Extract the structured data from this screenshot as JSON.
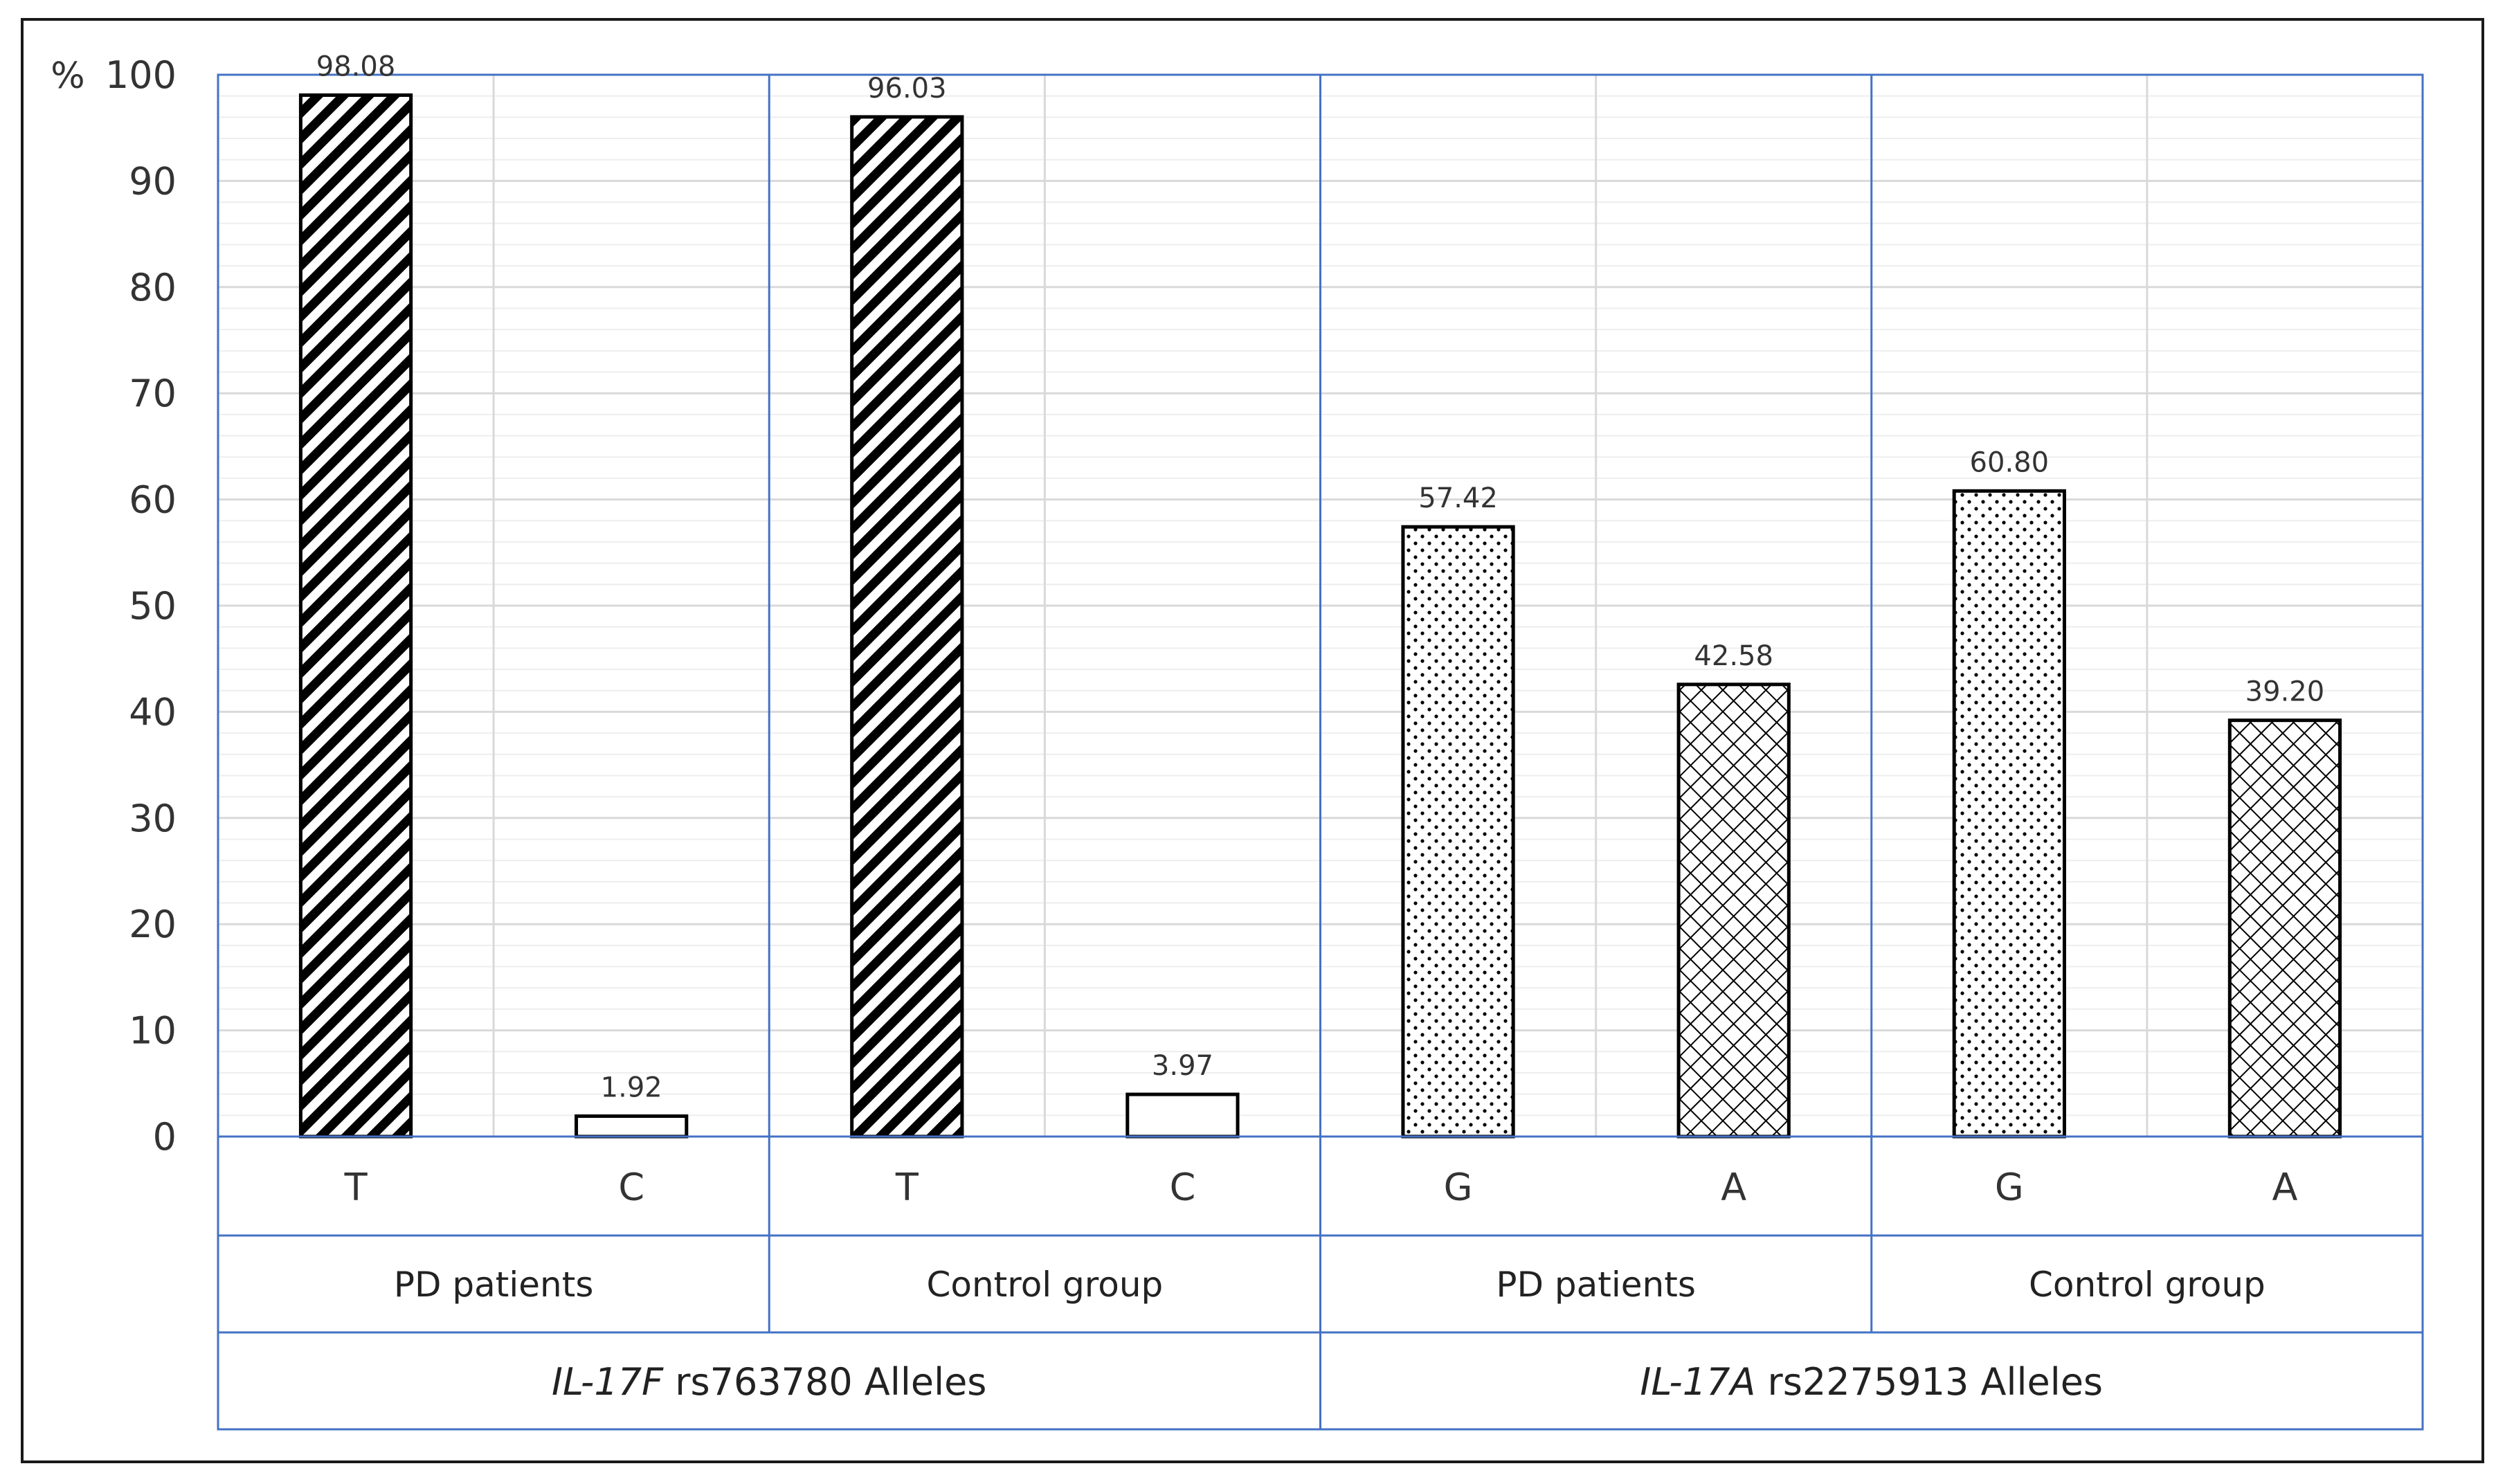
{
  "chart_data": {
    "type": "bar",
    "ylabel": "%",
    "ylim": [
      0,
      100
    ],
    "yticks": [
      0,
      10,
      20,
      30,
      40,
      50,
      60,
      70,
      80,
      90,
      100
    ],
    "grid": true,
    "legend": "none",
    "groups": [
      {
        "gene": "IL-17F",
        "label_suffix": " rs763780 Alleles",
        "subgroups": [
          {
            "name": "PD patients",
            "bars": [
              {
                "allele": "T",
                "value": 98.08,
                "label": "98.08",
                "pattern": "diagonal"
              },
              {
                "allele": "C",
                "value": 1.92,
                "label": "1.92",
                "pattern": "none"
              }
            ]
          },
          {
            "name": "Control group",
            "bars": [
              {
                "allele": "T",
                "value": 96.03,
                "label": "96.03",
                "pattern": "diagonal"
              },
              {
                "allele": "C",
                "value": 3.97,
                "label": "3.97",
                "pattern": "none"
              }
            ]
          }
        ]
      },
      {
        "gene": "IL-17A",
        "label_suffix": " rs2275913 Alleles",
        "subgroups": [
          {
            "name": "PD patients",
            "bars": [
              {
                "allele": "G",
                "value": 57.42,
                "label": "57.42",
                "pattern": "dots"
              },
              {
                "allele": "A",
                "value": 42.58,
                "label": "42.58",
                "pattern": "crosshatch"
              }
            ]
          },
          {
            "name": "Control group",
            "bars": [
              {
                "allele": "G",
                "value": 60.8,
                "label": "60.80",
                "pattern": "dots"
              },
              {
                "allele": "A",
                "value": 39.2,
                "label": "39.20",
                "pattern": "crosshatch"
              }
            ]
          }
        ]
      }
    ],
    "colors": {
      "bar_outline": "#000000",
      "frame": "#4472c4",
      "gridline": "#d9d9d9",
      "minor_gridline": "#eeeeee",
      "text": "#333333"
    }
  }
}
